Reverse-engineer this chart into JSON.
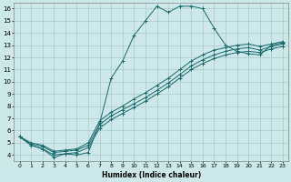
{
  "xlabel": "Humidex (Indice chaleur)",
  "bg_color": "#cce8e8",
  "line_color": "#1a6b6b",
  "grid_color": "#aacccc",
  "xlim": [
    -0.5,
    23.5
  ],
  "ylim": [
    3.5,
    16.5
  ],
  "xticks": [
    0,
    1,
    2,
    3,
    4,
    5,
    6,
    7,
    8,
    9,
    10,
    11,
    12,
    13,
    14,
    15,
    16,
    17,
    18,
    19,
    20,
    21,
    22,
    23
  ],
  "yticks": [
    4,
    5,
    6,
    7,
    8,
    9,
    10,
    11,
    12,
    13,
    14,
    15,
    16
  ],
  "lines": [
    {
      "x": [
        0,
        1,
        2,
        3,
        4,
        5,
        6,
        7,
        8,
        9,
        10,
        11,
        12,
        13,
        14,
        15,
        16,
        17,
        18,
        19,
        20,
        21,
        22,
        23
      ],
      "y": [
        5.5,
        4.8,
        4.5,
        3.8,
        4.1,
        4.0,
        4.2,
        6.6,
        10.3,
        11.7,
        13.8,
        15.0,
        16.2,
        15.7,
        16.2,
        16.2,
        16.0,
        14.4,
        13.0,
        12.5,
        12.3,
        12.2,
        13.0,
        13.2
      ]
    },
    {
      "x": [
        0,
        1,
        2,
        3,
        4,
        5,
        6,
        7,
        8,
        9,
        10,
        11,
        12,
        13,
        14,
        15,
        16,
        17,
        18,
        19,
        20,
        21,
        22,
        23
      ],
      "y": [
        5.5,
        5.0,
        4.8,
        4.3,
        4.4,
        4.5,
        5.0,
        6.8,
        7.5,
        8.0,
        8.6,
        9.1,
        9.7,
        10.3,
        11.0,
        11.7,
        12.2,
        12.6,
        12.8,
        13.0,
        13.1,
        12.9,
        13.1,
        13.3
      ]
    },
    {
      "x": [
        0,
        1,
        2,
        3,
        4,
        5,
        6,
        7,
        8,
        9,
        10,
        11,
        12,
        13,
        14,
        15,
        16,
        17,
        18,
        19,
        20,
        21,
        22,
        23
      ],
      "y": [
        5.5,
        4.9,
        4.7,
        4.2,
        4.3,
        4.4,
        4.8,
        6.5,
        7.2,
        7.7,
        8.2,
        8.7,
        9.3,
        9.9,
        10.6,
        11.3,
        11.8,
        12.2,
        12.5,
        12.7,
        12.8,
        12.6,
        12.9,
        13.1
      ]
    },
    {
      "x": [
        0,
        1,
        2,
        3,
        4,
        5,
        6,
        7,
        8,
        9,
        10,
        11,
        12,
        13,
        14,
        15,
        16,
        17,
        18,
        19,
        20,
        21,
        22,
        23
      ],
      "y": [
        5.5,
        4.8,
        4.5,
        4.0,
        4.1,
        4.2,
        4.6,
        6.2,
        6.9,
        7.4,
        7.9,
        8.4,
        9.0,
        9.6,
        10.3,
        11.0,
        11.5,
        11.9,
        12.2,
        12.4,
        12.5,
        12.4,
        12.7,
        12.9
      ]
    }
  ]
}
